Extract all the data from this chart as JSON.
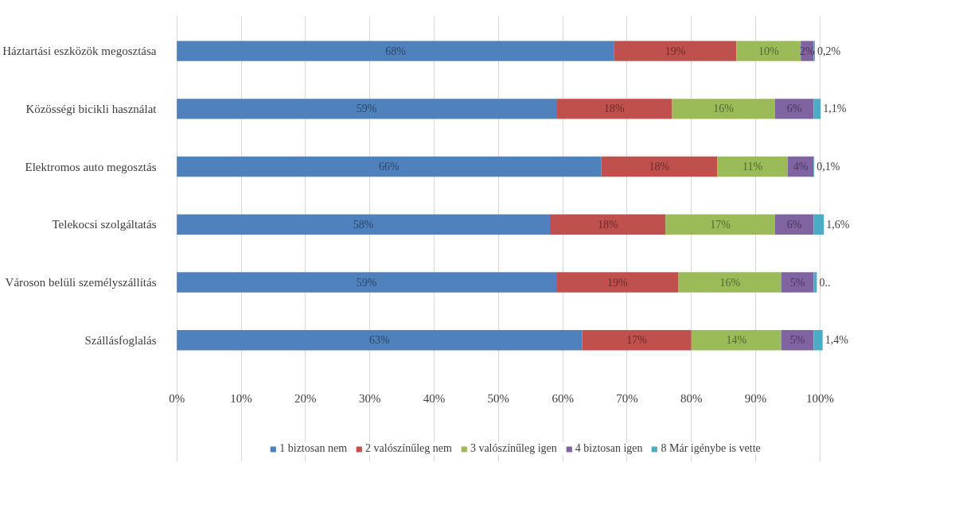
{
  "chart_data": {
    "type": "bar",
    "orientation": "horizontal",
    "stacked": true,
    "categories": [
      "Háztartási eszközök megosztása",
      "Közösségi bicikli használat",
      "Elektromos auto megosztás",
      "Telekocsi szolgáltatás",
      "Városon belüli személyszállítás",
      "Szállásfoglalás"
    ],
    "series": [
      {
        "name": "1 biztosan nem",
        "color": "#4f81bd",
        "values": [
          68,
          59,
          66,
          58,
          59,
          63
        ],
        "value_labels": [
          "68%",
          "59%",
          "66%",
          "58%",
          "59%",
          "63%"
        ]
      },
      {
        "name": "2 valószínűleg nem",
        "color": "#c0504d",
        "values": [
          19,
          18,
          18,
          18,
          19,
          17
        ],
        "value_labels": [
          "19%",
          "18%",
          "18%",
          "18%",
          "19%",
          "17%"
        ]
      },
      {
        "name": "3 valószínűleg igen",
        "color": "#9bbb59",
        "values": [
          10,
          16,
          11,
          17,
          16,
          14
        ],
        "value_labels": [
          "10%",
          "16%",
          "11%",
          "17%",
          "16%",
          "14%"
        ]
      },
      {
        "name": "4 biztosan igen",
        "color": "#8064a2",
        "values": [
          2,
          6,
          4,
          6,
          5,
          5
        ],
        "value_labels": [
          "2%",
          "6%",
          "4%",
          "6%",
          "5%",
          "5%"
        ]
      },
      {
        "name": "8 Már igénybe is vette",
        "color": "#4bacc6",
        "values": [
          0.2,
          1.1,
          0.1,
          1.6,
          0.5,
          1.4
        ],
        "value_labels": [
          "0,2%",
          "1,1%",
          "0,1%",
          "1,6%",
          "0..",
          "1,4%"
        ]
      }
    ],
    "xlim": [
      0,
      101
    ],
    "xticks": [
      {
        "value": 0,
        "label": "0%"
      },
      {
        "value": 10,
        "label": "10%"
      },
      {
        "value": 20,
        "label": "20%"
      },
      {
        "value": 30,
        "label": "30%"
      },
      {
        "value": 40,
        "label": "40%"
      },
      {
        "value": 50,
        "label": "50%"
      },
      {
        "value": 60,
        "label": "60%"
      },
      {
        "value": 70,
        "label": "70%"
      },
      {
        "value": 80,
        "label": "80%"
      },
      {
        "value": 90,
        "label": "90%"
      },
      {
        "value": 100,
        "label": "100%"
      }
    ],
    "grid": "x",
    "legend": "bottom"
  }
}
